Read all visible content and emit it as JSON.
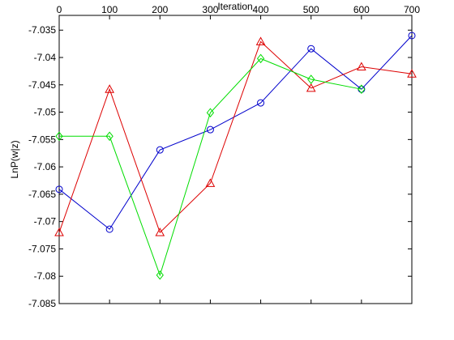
{
  "chart_data": {
    "type": "line",
    "xlabel": "Iteration",
    "ylabel": "LnP(w|z)",
    "x": [
      0,
      100,
      200,
      300,
      400,
      500,
      600,
      700
    ],
    "xlim": [
      0,
      700
    ],
    "xticks": [
      0,
      100,
      200,
      300,
      400,
      500,
      600,
      700
    ],
    "ylim": [
      -7.085,
      -7.0323
    ],
    "yticks": [
      -7.085,
      -7.08,
      -7.075,
      -7.07,
      -7.065,
      -7.06,
      -7.055,
      -7.05,
      -7.045,
      -7.04,
      -7.035
    ],
    "series": [
      {
        "color": "#0000cc",
        "marker": "circle",
        "values": [
          -7.0641,
          -7.0714,
          -7.0569,
          -7.0532,
          -7.0483,
          -7.0384,
          -7.0458,
          -7.036
        ]
      },
      {
        "color": "#dd0000",
        "marker": "triangle",
        "values": [
          -7.072,
          -7.0458,
          -7.072,
          -7.063,
          -7.0371,
          -7.0456,
          -7.0417,
          -7.043
        ]
      },
      {
        "color": "#00dd00",
        "marker": "diamond",
        "values": [
          -7.0544,
          -7.0544,
          -7.0798,
          -7.0501,
          -7.0402,
          -7.044,
          -7.0458,
          null
        ]
      }
    ]
  }
}
